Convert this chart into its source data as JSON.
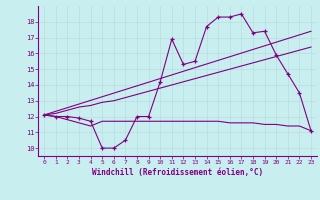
{
  "title": "",
  "xlabel": "Windchill (Refroidissement éolien,°C)",
  "ylabel": "",
  "background_color": "#c8eef0",
  "grid_color": "#aadddd",
  "line_color": "#800080",
  "xlim": [
    -0.5,
    23.5
  ],
  "ylim": [
    9.5,
    19.0
  ],
  "xticks": [
    0,
    1,
    2,
    3,
    4,
    5,
    6,
    7,
    8,
    9,
    10,
    11,
    12,
    13,
    14,
    15,
    16,
    17,
    18,
    19,
    20,
    21,
    22,
    23
  ],
  "yticks": [
    10,
    11,
    12,
    13,
    14,
    15,
    16,
    17,
    18
  ],
  "series1_x": [
    0,
    1,
    2,
    3,
    4,
    5,
    6,
    7,
    8,
    9,
    10,
    11,
    12,
    13,
    14,
    15,
    16,
    17,
    18,
    19,
    20,
    21,
    22,
    23
  ],
  "series1_y": [
    12.1,
    12.0,
    12.0,
    11.9,
    11.7,
    10.0,
    10.0,
    10.5,
    12.0,
    12.0,
    14.2,
    16.9,
    15.3,
    15.5,
    17.7,
    18.3,
    18.3,
    18.5,
    17.3,
    17.4,
    15.9,
    14.7,
    13.5,
    11.1
  ],
  "series2_x": [
    0,
    1,
    2,
    3,
    4,
    5,
    6,
    7,
    8,
    9,
    10,
    11,
    12,
    13,
    14,
    15,
    16,
    17,
    18,
    19,
    20,
    21,
    22,
    23
  ],
  "series2_y": [
    12.1,
    12.2,
    12.4,
    12.6,
    12.7,
    12.9,
    13.0,
    13.2,
    13.4,
    13.6,
    13.8,
    14.0,
    14.2,
    14.4,
    14.6,
    14.8,
    15.0,
    15.2,
    15.4,
    15.6,
    15.8,
    16.0,
    16.2,
    16.4
  ],
  "series3_x": [
    0,
    23
  ],
  "series3_y": [
    12.1,
    17.4
  ],
  "series4_x": [
    0,
    1,
    2,
    3,
    4,
    5,
    6,
    7,
    8,
    9,
    10,
    11,
    12,
    13,
    14,
    15,
    16,
    17,
    18,
    19,
    20,
    21,
    22,
    23
  ],
  "series4_y": [
    12.1,
    12.0,
    11.8,
    11.6,
    11.4,
    11.7,
    11.7,
    11.7,
    11.7,
    11.7,
    11.7,
    11.7,
    11.7,
    11.7,
    11.7,
    11.7,
    11.6,
    11.6,
    11.6,
    11.5,
    11.5,
    11.4,
    11.4,
    11.1
  ]
}
